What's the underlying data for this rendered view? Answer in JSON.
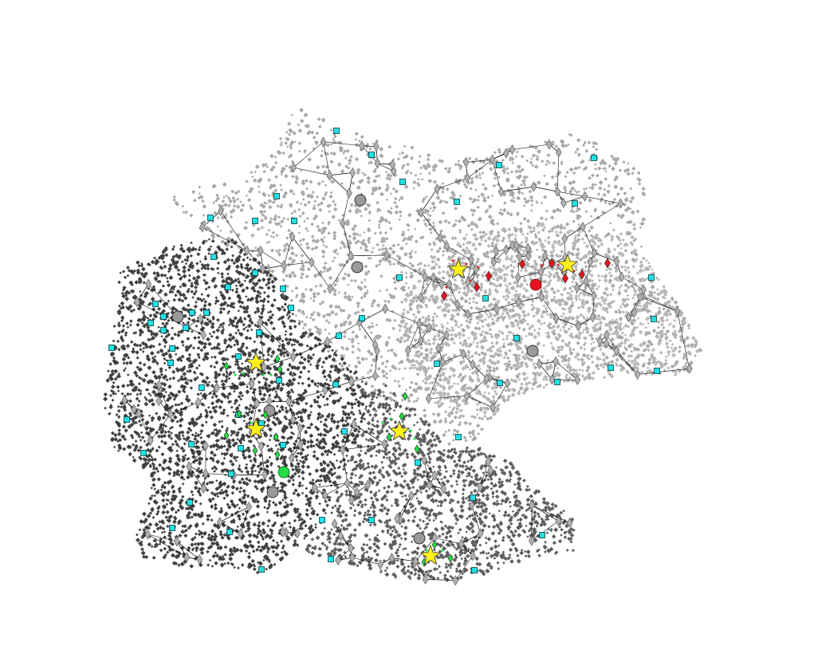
{
  "colors": {
    "background": "#ffffff",
    "region_north": "#a9a9a9",
    "region_west": "#404040",
    "region_south": "#5e5e5e",
    "region_east": "#b8b8b8",
    "edge": "#111111",
    "hub_diamond_fill": "#b0b0b0",
    "hub_circle_fill": "#9a9a9a",
    "square_marker": "#22e0e6",
    "star_marker": "#ffef1a",
    "red_marker": "#e8141d",
    "green_marker": "#22dd44"
  },
  "icons": {
    "square": "square-icon",
    "star": "star-icon",
    "circle": "circle-icon",
    "diamond": "diamond-icon"
  }
}
